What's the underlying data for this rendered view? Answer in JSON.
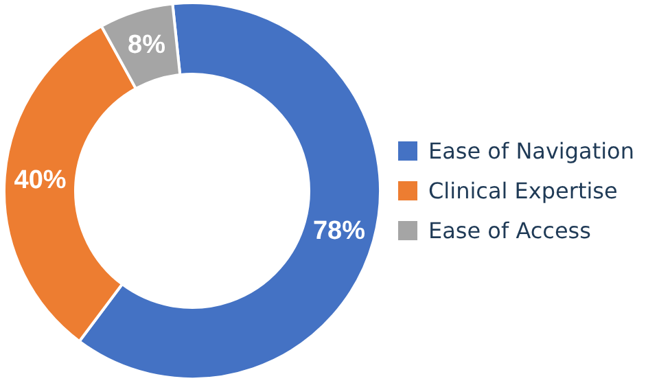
{
  "chart_data": {
    "type": "donut",
    "categories": [
      "Ease of Navigation",
      "Clinical Expertise",
      "Ease of Access"
    ],
    "values": [
      78,
      40,
      8
    ],
    "colors": [
      "#4472c4",
      "#ed7d31",
      "#a5a5a5"
    ],
    "value_labels": [
      "78%",
      "40%",
      "8%"
    ],
    "legend": "right"
  }
}
